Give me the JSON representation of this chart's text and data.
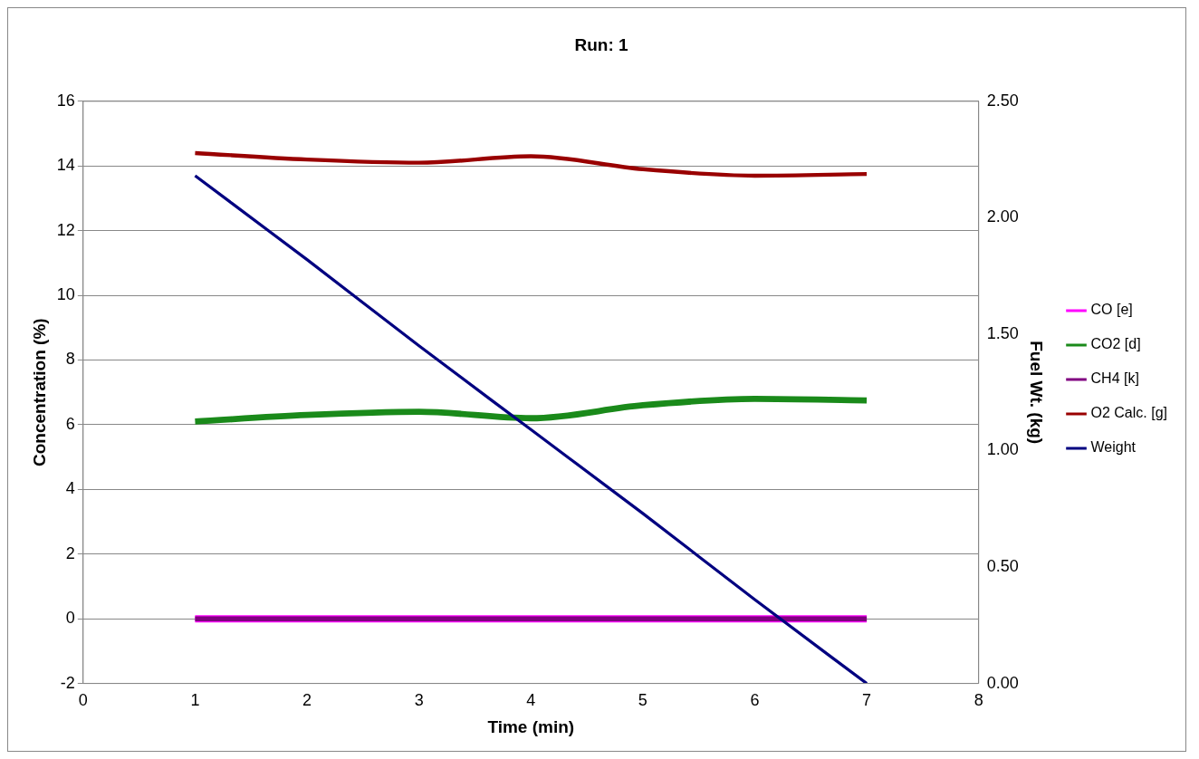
{
  "chart_data": {
    "type": "line",
    "title": "Run: 1",
    "xlabel": "Time (min)",
    "ylabel": "Concentration (%)",
    "y2label": "Fuel Wt. (kg)",
    "x": [
      1,
      2,
      3,
      4,
      5,
      6,
      7
    ],
    "series": [
      {
        "name": "CO [e]",
        "color": "#ff00ff",
        "values": [
          0,
          0,
          0,
          0,
          0,
          0,
          0
        ]
      },
      {
        "name": "CO2 [d]",
        "color": "#1a8a1a",
        "values": [
          6.1,
          6.3,
          6.4,
          6.2,
          6.6,
          6.8,
          6.75
        ]
      },
      {
        "name": "CH4 [k]",
        "color": "#800080",
        "values": [
          0,
          0,
          0,
          0,
          0,
          0,
          0
        ]
      },
      {
        "name": "O2 Calc. [g]",
        "color": "#990000",
        "values": [
          14.4,
          14.2,
          14.1,
          14.3,
          13.9,
          13.7,
          13.75
        ]
      },
      {
        "name": "Weight",
        "color": "#000080",
        "axis": "y2",
        "values": [
          2.18,
          1.82,
          1.45,
          1.09,
          0.73,
          0.36,
          0
        ]
      }
    ],
    "xlim": [
      0,
      8
    ],
    "xticks": [
      0,
      1,
      2,
      3,
      4,
      5,
      6,
      7,
      8
    ],
    "ylim": [
      -2,
      16
    ],
    "yticks": [
      -2,
      0,
      2,
      4,
      6,
      8,
      10,
      12,
      14,
      16
    ],
    "y2lim": [
      0,
      2.5
    ],
    "y2ticks": [
      {
        "value": 0,
        "label": "0.00"
      },
      {
        "value": 0.5,
        "label": "0.50"
      },
      {
        "value": 1,
        "label": "1.00"
      },
      {
        "value": 1.5,
        "label": "1.50"
      },
      {
        "value": 2,
        "label": "2.00"
      },
      {
        "value": 2.5,
        "label": "2.50"
      }
    ],
    "grid": "y",
    "legend": "right",
    "marker": "none",
    "line_style": "solid"
  }
}
